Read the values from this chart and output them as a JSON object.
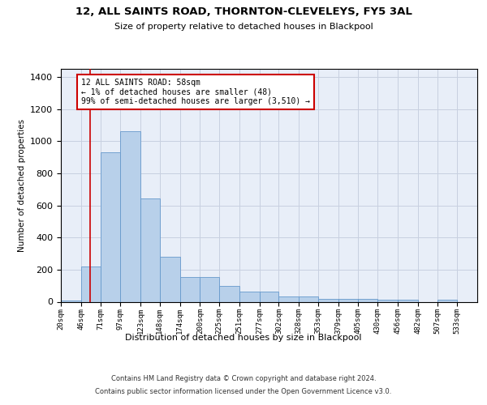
{
  "title1": "12, ALL SAINTS ROAD, THORNTON-CLEVELEYS, FY5 3AL",
  "title2": "Size of property relative to detached houses in Blackpool",
  "xlabel": "Distribution of detached houses by size in Blackpool",
  "ylabel": "Number of detached properties",
  "footer1": "Contains HM Land Registry data © Crown copyright and database right 2024.",
  "footer2": "Contains public sector information licensed under the Open Government Licence v3.0.",
  "annotation_title": "12 ALL SAINTS ROAD: 58sqm",
  "annotation_line1": "← 1% of detached houses are smaller (48)",
  "annotation_line2": "99% of semi-detached houses are larger (3,510) →",
  "property_size": 58,
  "bar_color": "#b8d0ea",
  "bar_edge_color": "#6699cc",
  "vline_color": "#cc0000",
  "annotation_bg": "#ffffff",
  "annotation_edge": "#cc0000",
  "background_color": "#e8eef8",
  "grid_color": "#c8d0e0",
  "categories": [
    "20sqm",
    "46sqm",
    "71sqm",
    "97sqm",
    "123sqm",
    "148sqm",
    "174sqm",
    "200sqm",
    "225sqm",
    "251sqm",
    "277sqm",
    "302sqm",
    "328sqm",
    "353sqm",
    "379sqm",
    "405sqm",
    "430sqm",
    "456sqm",
    "482sqm",
    "507sqm",
    "533sqm"
  ],
  "bin_edges": [
    20,
    46,
    71,
    97,
    123,
    148,
    174,
    200,
    225,
    251,
    277,
    302,
    328,
    353,
    379,
    405,
    430,
    456,
    482,
    507,
    533,
    559
  ],
  "values": [
    10,
    220,
    930,
    1060,
    645,
    280,
    155,
    155,
    100,
    65,
    65,
    33,
    33,
    18,
    18,
    18,
    12,
    12,
    0,
    12,
    0
  ],
  "ylim": [
    0,
    1450
  ],
  "yticks": [
    0,
    200,
    400,
    600,
    800,
    1000,
    1200,
    1400
  ]
}
